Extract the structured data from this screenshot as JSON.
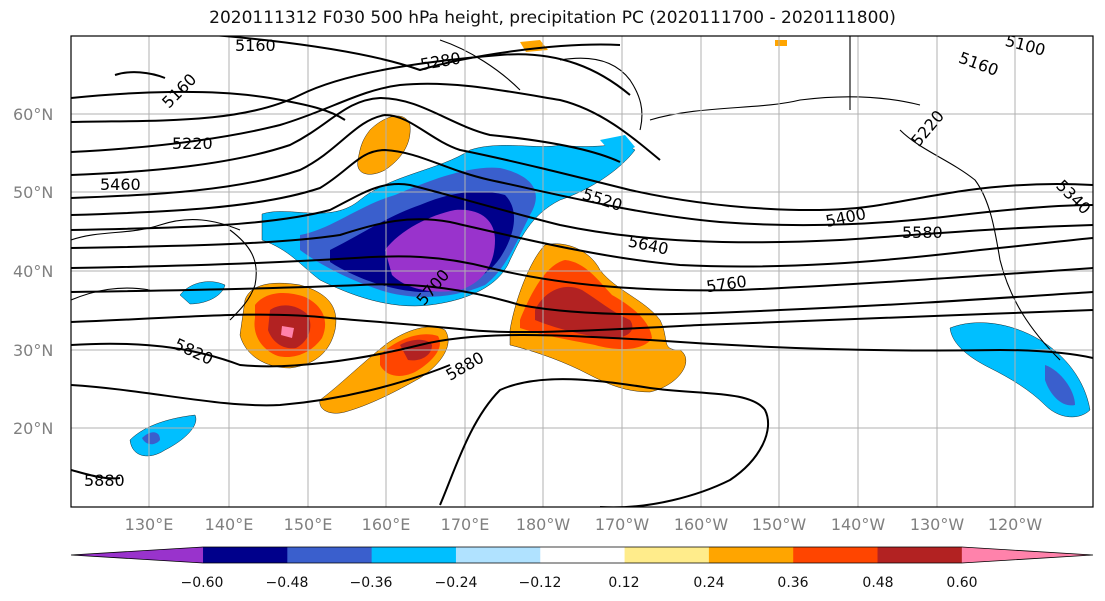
{
  "title": "2020111312 F030 500 hPa height, precipitation PC (2020111700 - 2020111800)",
  "lat_labels": [
    "60°N",
    "50°N",
    "40°N",
    "30°N",
    "20°N"
  ],
  "lon_labels": [
    "130°E",
    "140°E",
    "150°E",
    "160°E",
    "170°E",
    "180°W",
    "170°W",
    "160°W",
    "150°W",
    "140°W",
    "130°W",
    "120°W"
  ],
  "colorbar": {
    "colors": [
      "#9933cc",
      "#00008b",
      "#3a5fcd",
      "#00bfff",
      "#b0e2ff",
      "#ffffff",
      "#ffec8b",
      "#ffa500",
      "#ff4500",
      "#b22222",
      "#ff82ab"
    ],
    "tick_labels": [
      "−0.60",
      "−0.48",
      "−0.36",
      "−0.24",
      "−0.12",
      "0.12",
      "0.24",
      "0.36",
      "0.48",
      "0.60"
    ]
  },
  "contour_labels": [
    {
      "text": "5160"
    },
    {
      "text": "5160"
    },
    {
      "text": "5280"
    },
    {
      "text": "5220"
    },
    {
      "text": "5460"
    },
    {
      "text": "5100"
    },
    {
      "text": "5160"
    },
    {
      "text": "5520"
    },
    {
      "text": "5400"
    },
    {
      "text": "5640"
    },
    {
      "text": "5580"
    },
    {
      "text": "5340"
    },
    {
      "text": "5760"
    },
    {
      "text": "5820"
    },
    {
      "text": "5880"
    },
    {
      "text": "5880"
    },
    {
      "text": "5700"
    },
    {
      "text": "5220"
    }
  ]
}
